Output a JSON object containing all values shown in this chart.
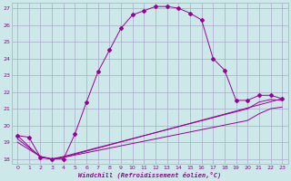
{
  "bg_color": "#cce8e8",
  "grid_color": "#aaaacc",
  "line_color": "#990099",
  "xlim": [
    -0.5,
    23.5
  ],
  "ylim": [
    17.7,
    27.3
  ],
  "xticks": [
    0,
    1,
    2,
    3,
    4,
    5,
    6,
    7,
    8,
    9,
    10,
    11,
    12,
    13,
    14,
    15,
    16,
    17,
    18,
    19,
    20,
    21,
    22,
    23
  ],
  "yticks": [
    18,
    19,
    20,
    21,
    22,
    23,
    24,
    25,
    26,
    27
  ],
  "xlabel": "Windchill (Refroidissement éolien,°C)",
  "line1_x": [
    0,
    1,
    2,
    3,
    4,
    5,
    6,
    7,
    8,
    9,
    10,
    11,
    12,
    13,
    14,
    15,
    16,
    17,
    18,
    19,
    20,
    21,
    22,
    23
  ],
  "line1_y": [
    19.4,
    19.3,
    18.1,
    18.0,
    18.0,
    19.5,
    21.4,
    23.2,
    24.5,
    25.8,
    26.6,
    26.85,
    27.1,
    27.1,
    27.0,
    26.7,
    26.3,
    24.0,
    23.3,
    21.5,
    21.5,
    21.8,
    21.8,
    21.6
  ],
  "line2_x": [
    0,
    2,
    3,
    4,
    23
  ],
  "line2_y": [
    19.4,
    18.1,
    18.0,
    18.1,
    21.6
  ],
  "line3_x": [
    0,
    2,
    3,
    4,
    20,
    21,
    22,
    23
  ],
  "line3_y": [
    19.2,
    18.15,
    18.0,
    18.15,
    21.0,
    21.4,
    21.55,
    21.5
  ],
  "line4_x": [
    0,
    2,
    3,
    4,
    20,
    21,
    22,
    23
  ],
  "line4_y": [
    19.0,
    18.15,
    18.0,
    18.1,
    20.3,
    20.7,
    21.0,
    21.1
  ]
}
